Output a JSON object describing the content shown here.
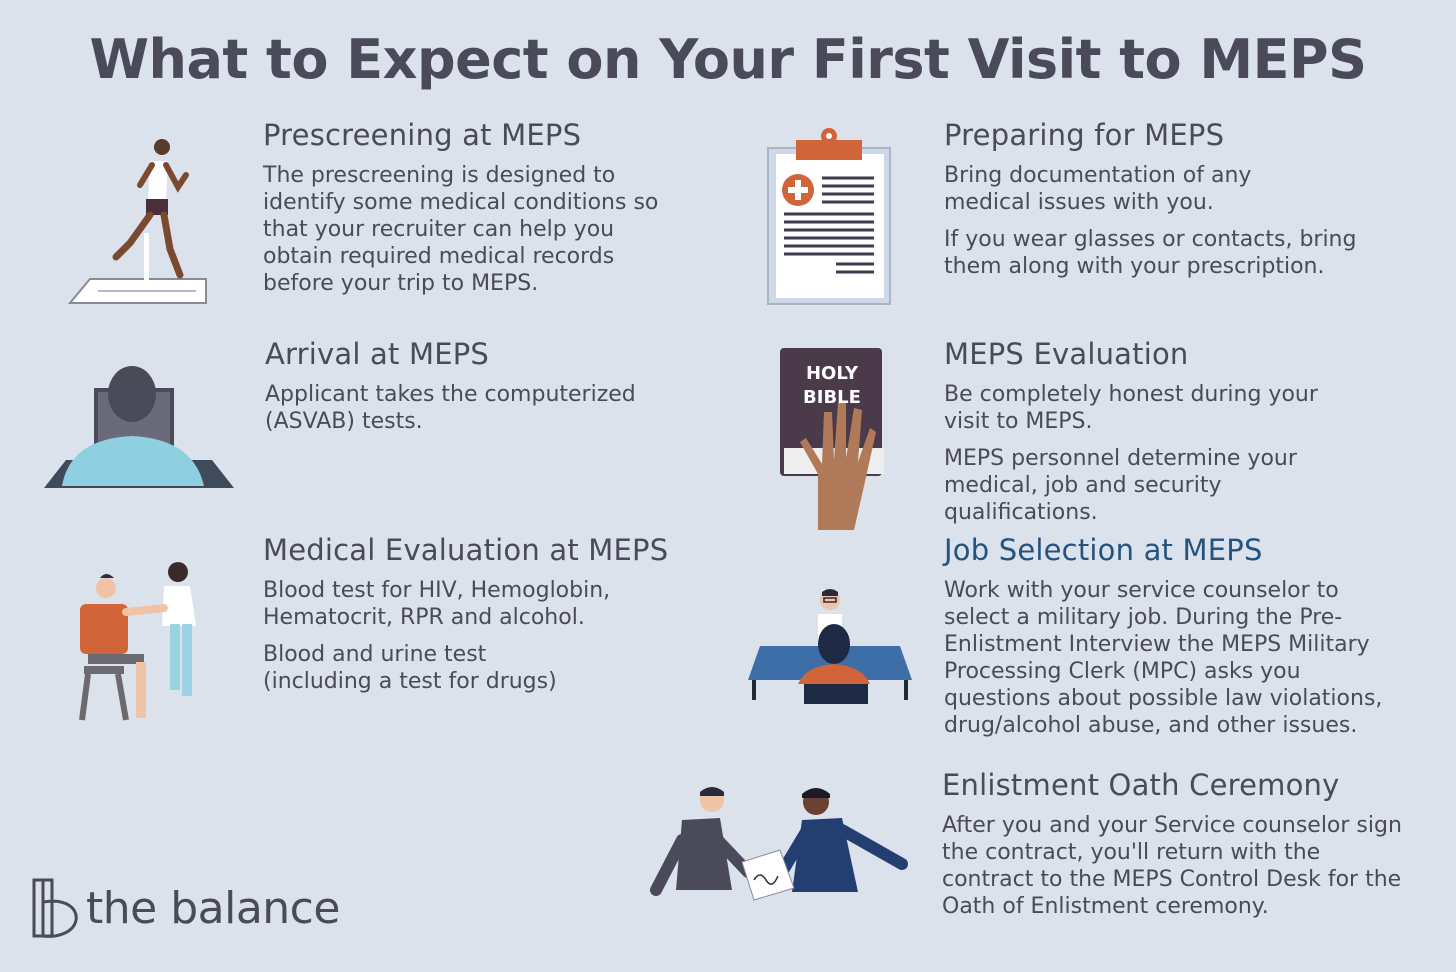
{
  "title": "What to Expect on Your First Visit to MEPS",
  "sections": {
    "prescreening": {
      "heading": "Prescreening at MEPS",
      "paragraphs": [
        "The prescreening is designed to identify some medical conditions so that your recruiter can help you obtain required medical records before your trip to MEPS."
      ]
    },
    "arrival": {
      "heading": "Arrival at MEPS",
      "paragraphs": [
        "Applicant takes the computerized (ASVAB) tests."
      ]
    },
    "medical": {
      "heading": "Medical Evaluation at MEPS",
      "paragraphs": [
        "Blood test for HIV, Hemoglobin, Hematocrit, RPR and alcohol.",
        "Blood and urine test (including a test for drugs)"
      ]
    },
    "preparing": {
      "heading": "Preparing for MEPS",
      "paragraphs": [
        "Bring documentation of any medical issues with you.",
        "If you wear glasses or contacts, bring them along with your prescription."
      ]
    },
    "evaluation": {
      "heading": "MEPS Evaluation",
      "paragraphs": [
        "Be completely honest during your visit to MEPS.",
        "MEPS personnel determine your medical, job and security qualifications."
      ]
    },
    "job": {
      "heading": "Job Selection at MEPS",
      "paragraphs": [
        "Work with your service counselor to select a military job. During the Pre-Enlistment Interview the MEPS Military Processing Clerk (MPC) asks you questions about possible law violations, drug/alcohol abuse, and other issues."
      ]
    },
    "oath": {
      "heading": "Enlistment Oath Ceremony",
      "paragraphs": [
        "After you and your Service counselor sign the contract, you'll return with the contract to the MEPS Control Desk for the Oath of Enlistment ceremony."
      ]
    }
  },
  "bible": {
    "line1": "HOLY",
    "line2": "BIBLE"
  },
  "logo": {
    "text": "the balance"
  },
  "colors": {
    "background": "#dbe2ec",
    "text": "#4a4a5a",
    "accent_blue": "#24537f",
    "orange": "#d2643a"
  }
}
